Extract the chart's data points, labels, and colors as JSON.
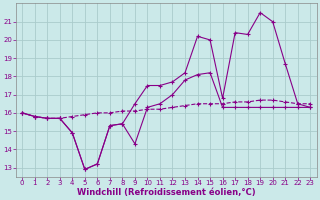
{
  "bg_color": "#cbe9e9",
  "line_color": "#880088",
  "grid_color": "#aacccc",
  "xlabel": "Windchill (Refroidissement éolien,°C)",
  "xlabel_color": "#880088",
  "xtick_color": "#880088",
  "ytick_color": "#880088",
  "xlim": [
    -0.5,
    23.5
  ],
  "ylim": [
    12.5,
    22.0
  ],
  "yticks": [
    13,
    14,
    15,
    16,
    17,
    18,
    19,
    20,
    21
  ],
  "xticks": [
    0,
    1,
    2,
    3,
    4,
    5,
    6,
    7,
    8,
    9,
    10,
    11,
    12,
    13,
    14,
    15,
    16,
    17,
    18,
    19,
    20,
    21,
    22,
    23
  ],
  "series_dashed_x": [
    0,
    1,
    2,
    3,
    4,
    5,
    6,
    7,
    8,
    9,
    10,
    11,
    12,
    13,
    14,
    15,
    16,
    17,
    18,
    19,
    20,
    21,
    22,
    23
  ],
  "series_dashed_y": [
    16.0,
    15.8,
    15.7,
    15.7,
    15.8,
    15.9,
    16.0,
    16.0,
    16.1,
    16.1,
    16.2,
    16.2,
    16.3,
    16.4,
    16.5,
    16.5,
    16.5,
    16.6,
    16.6,
    16.7,
    16.7,
    16.6,
    16.5,
    16.5
  ],
  "series_low_x": [
    0,
    1,
    2,
    3,
    4,
    5,
    6,
    7,
    8,
    9,
    10,
    11,
    12,
    13,
    14,
    15,
    16,
    17,
    18,
    19,
    20,
    21,
    22,
    23
  ],
  "series_low_y": [
    16.0,
    15.8,
    15.7,
    15.7,
    14.9,
    12.9,
    13.2,
    15.3,
    15.4,
    14.3,
    16.3,
    16.5,
    17.0,
    17.8,
    18.1,
    18.2,
    16.3,
    16.3,
    16.3,
    16.3,
    16.3,
    16.3,
    16.3,
    16.3
  ],
  "series_high_x": [
    0,
    1,
    2,
    3,
    4,
    5,
    6,
    7,
    8,
    9,
    10,
    11,
    12,
    13,
    14,
    15,
    16,
    17,
    18,
    19,
    20,
    21,
    22,
    23
  ],
  "series_high_y": [
    16.0,
    15.8,
    15.7,
    15.7,
    14.9,
    12.9,
    13.2,
    15.3,
    15.4,
    16.5,
    17.5,
    17.5,
    17.7,
    18.2,
    20.2,
    20.0,
    16.8,
    20.4,
    20.3,
    21.5,
    21.0,
    18.7,
    16.5,
    16.3
  ]
}
